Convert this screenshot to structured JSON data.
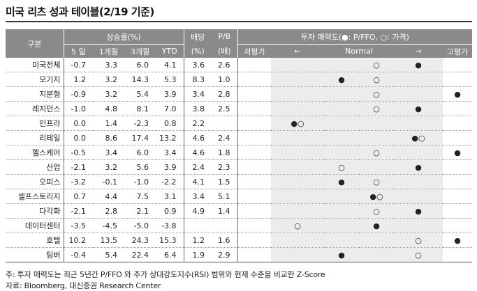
{
  "title": "미국 리츠 성과 테이블(2/19 기준)",
  "headers": {
    "group": "구분",
    "returns": "상승률(%)",
    "periods": [
      "5 일",
      "1개월",
      "3개월",
      "YTD"
    ],
    "dividend": "배당",
    "dividend_unit": "(%)",
    "pb": "P/B",
    "pb_unit": "(배)",
    "attractiveness": "투자 매력도(●: P/FFO, ○: 가격)",
    "scale": [
      "저평가",
      "←",
      "Normal",
      "→",
      "고평가"
    ]
  },
  "rows": [
    {
      "name": "미국전체",
      "d5": "-0.7",
      "m1": "3.3",
      "m3": "6.0",
      "ytd": "4.1",
      "div": "3.6",
      "pb": "2.6",
      "marks": [
        "",
        "",
        "",
        "○",
        "●",
        ""
      ]
    },
    {
      "name": "모기지",
      "d5": "1.2",
      "m1": "3.2",
      "m3": "14.3",
      "ytd": "5.3",
      "div": "8.3",
      "pb": "1.0",
      "marks": [
        "",
        "",
        "●",
        "○",
        "",
        ""
      ]
    },
    {
      "name": "지분형",
      "d5": "-0.9",
      "m1": "3.2",
      "m3": "5.4",
      "ytd": "3.9",
      "div": "3.4",
      "pb": "2.8",
      "marks": [
        "",
        "",
        "",
        "○",
        "",
        "●"
      ]
    },
    {
      "name": "레지던스",
      "d5": "-1.0",
      "m1": "4.8",
      "m3": "8.1",
      "ytd": "7.0",
      "div": "3.8",
      "pb": "2.5",
      "marks": [
        "",
        "",
        "",
        "○",
        "●",
        ""
      ]
    },
    {
      "name": "인프라",
      "d5": "0.0",
      "m1": "1.4",
      "m3": "-2.3",
      "ytd": "0.8",
      "div": "2.2",
      "pb": "",
      "marks": [
        "",
        "●○",
        "",
        "",
        "",
        ""
      ]
    },
    {
      "name": "리테일",
      "d5": "0.0",
      "m1": "8.6",
      "m3": "17.4",
      "ytd": "13.2",
      "div": "4.6",
      "pb": "2.4",
      "marks": [
        "",
        "",
        "",
        "",
        "●○",
        ""
      ]
    },
    {
      "name": "헬스케어",
      "d5": "-0.5",
      "m1": "3.4",
      "m3": "6.0",
      "ytd": "3.4",
      "div": "4.6",
      "pb": "1.8",
      "marks": [
        "",
        "",
        "",
        "○",
        "",
        "●"
      ]
    },
    {
      "name": "산업",
      "d5": "-2.1",
      "m1": "3.2",
      "m3": "5.6",
      "ytd": "3.9",
      "div": "2.4",
      "pb": "2.3",
      "marks": [
        "",
        "",
        "○",
        "",
        "●",
        ""
      ]
    },
    {
      "name": "오피스",
      "d5": "-3.2",
      "m1": "-0.1",
      "m3": "-1.0",
      "ytd": "-2.2",
      "div": "4.1",
      "pb": "1.5",
      "marks": [
        "",
        "",
        "●",
        "○",
        "",
        ""
      ]
    },
    {
      "name": "셀프스토리지",
      "d5": "0.7",
      "m1": "4.4",
      "m3": "7.5",
      "ytd": "3.1",
      "div": "3.4",
      "pb": "5.1",
      "marks": [
        "",
        "",
        "",
        "●○",
        "",
        ""
      ]
    },
    {
      "name": "다각화",
      "d5": "-2.1",
      "m1": "2.8",
      "m3": "2.1",
      "ytd": "0.9",
      "div": "4.9",
      "pb": "1.4",
      "marks": [
        "",
        "",
        "",
        "○",
        "●",
        ""
      ]
    },
    {
      "name": "데이터센터",
      "d5": "-3.5",
      "m1": "-4.5",
      "m3": "-5.0",
      "ytd": "-3.8",
      "div": "",
      "pb": "",
      "marks": [
        "",
        "○",
        "",
        "●",
        "",
        ""
      ]
    },
    {
      "name": "호텔",
      "d5": "10.2",
      "m1": "13.5",
      "m3": "24.3",
      "ytd": "15.3",
      "div": "1.2",
      "pb": "1.6",
      "marks": [
        "",
        "",
        "",
        "",
        "○",
        "●"
      ]
    },
    {
      "name": "팀버",
      "d5": "-0.4",
      "m1": "5.4",
      "m3": "22.4",
      "ytd": "6.4",
      "div": "1.9",
      "pb": "2.9",
      "marks": [
        "",
        "",
        "●",
        "",
        "○",
        ""
      ]
    }
  ],
  "note": "주: 투자 매력도는 최근 5년간 P/FFO 와 주가 상대강도지수(RSI) 범위와 현재 수준을 비교한 Z-Score",
  "source": "자료: Bloomberg, 대신증권 Research Center"
}
